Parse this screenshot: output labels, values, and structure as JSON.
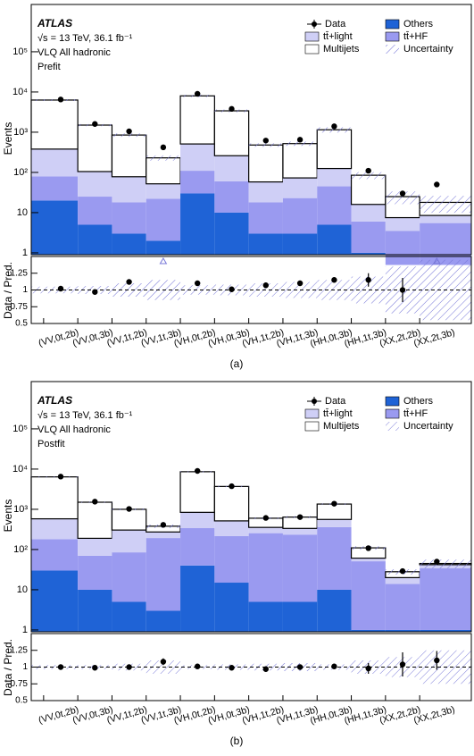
{
  "chart_data": [
    {
      "type": "stacked_hist",
      "caption": "(a)",
      "experiment": "ATLAS",
      "energy": "√s = 13 TeV, 36.1 fb⁻¹",
      "channel": "VLQ All hadronic",
      "stage": "Prefit",
      "ylabel": "Events",
      "ratio_label": "Data / Pred.",
      "categories": [
        "(VV,0t,2b)",
        "(VV,0t,3b)",
        "(VV,1t,2b)",
        "(VV,1t,3b)",
        "(VH,0t,2b)",
        "(VH,0t,3b)",
        "(VH,1t,2b)",
        "(VH,1t,3b)",
        "(HH,0t,3b)",
        "(HH,1t,3b)",
        "(XX,2t,2b)",
        "(XX,2t,3b)"
      ],
      "series": [
        {
          "name": "Others",
          "color": "#1f63d6",
          "values": [
            20,
            5,
            3,
            2,
            30,
            10,
            3,
            3,
            5,
            1,
            0.5,
            0.5
          ]
        },
        {
          "name": "tt̄+HF",
          "color": "#9a9af0",
          "values": [
            60,
            20,
            15,
            20,
            80,
            50,
            15,
            20,
            40,
            5,
            3,
            5
          ]
        },
        {
          "name": "tt̄+light",
          "color": "#cfcff6",
          "values": [
            300,
            80,
            60,
            30,
            400,
            200,
            40,
            50,
            80,
            10,
            4,
            3
          ]
        },
        {
          "name": "Multijets",
          "color": "#ffffff",
          "values": [
            5920,
            1395,
            772,
            178,
            7490,
            3140,
            422,
            447,
            1025,
            69,
            17.5,
            9.5
          ]
        }
      ],
      "data": {
        "name": "Data",
        "values": [
          6500,
          1600,
          1050,
          420,
          9000,
          3800,
          620,
          650,
          1400,
          110,
          30,
          50
        ]
      },
      "uncertainty": {
        "name": "Uncertainty",
        "color": "#7878d8",
        "values": [
          0.05,
          0.06,
          0.1,
          0.15,
          0.07,
          0.08,
          0.1,
          0.12,
          0.15,
          0.2,
          0.35,
          0.45
        ]
      },
      "ratio": {
        "values": [
          1.02,
          0.97,
          1.12,
          1.8,
          1.1,
          1.01,
          1.07,
          1.1,
          1.15,
          1.15,
          1.0,
          2.8
        ],
        "errors": [
          0.01,
          0.02,
          0.03,
          0.05,
          0.01,
          0.02,
          0.04,
          0.04,
          0.03,
          0.1,
          0.18,
          0.15
        ]
      },
      "log": true,
      "ylim": [
        0.9,
        1500000
      ],
      "yticks": [
        1,
        10,
        {
          "value": 100,
          "label": "10²"
        },
        {
          "value": 1000,
          "label": "10³"
        },
        {
          "value": 10000,
          "label": "10⁴"
        },
        {
          "value": 100000,
          "label": "10⁵"
        }
      ],
      "ratio_ylim": [
        0.5,
        1.5
      ],
      "ratio_yticks": [
        0.5,
        0.75,
        1,
        1.25
      ]
    },
    {
      "type": "stacked_hist",
      "caption": "(b)",
      "experiment": "ATLAS",
      "energy": "√s = 13 TeV, 36.1 fb⁻¹",
      "channel": "VLQ All hadronic",
      "stage": "Postfit",
      "ylabel": "Events",
      "ratio_label": "Data / Pred.",
      "categories": [
        "(VV,0t,2b)",
        "(VV,0t,3b)",
        "(VV,1t,2b)",
        "(VV,1t,3b)",
        "(VH,0t,2b)",
        "(VH,0t,3b)",
        "(VH,1t,2b)",
        "(VH,1t,3b)",
        "(HH,0t,3b)",
        "(HH,1t,3b)",
        "(XX,2t,2b)",
        "(XX,2t,3b)"
      ],
      "series": [
        {
          "name": "Others",
          "color": "#1f63d6",
          "values": [
            30,
            10,
            5,
            3,
            40,
            15,
            5,
            5,
            10,
            1,
            1,
            1
          ]
        },
        {
          "name": "tt̄+HF",
          "color": "#9a9af0",
          "values": [
            150,
            60,
            80,
            190,
            300,
            200,
            250,
            230,
            350,
            50,
            13,
            33
          ]
        },
        {
          "name": "tt̄+light",
          "color": "#cfcff6",
          "values": [
            400,
            120,
            220,
            80,
            500,
            300,
            100,
            100,
            200,
            10,
            6,
            8
          ]
        },
        {
          "name": "Multijets",
          "color": "#ffffff",
          "values": [
            5820,
            1310,
            695,
            107,
            7760,
            3185,
            245,
            305,
            790,
            49,
            8,
            3
          ]
        }
      ],
      "data": {
        "name": "Data",
        "values": [
          6500,
          1550,
          1020,
          410,
          9000,
          3750,
          610,
          640,
          1380,
          108,
          29,
          50
        ]
      },
      "uncertainty": {
        "name": "Uncertainty",
        "color": "#7878d8",
        "values": [
          0.03,
          0.03,
          0.05,
          0.1,
          0.03,
          0.04,
          0.05,
          0.06,
          0.04,
          0.1,
          0.15,
          0.25
        ]
      },
      "ratio": {
        "values": [
          1.0,
          0.99,
          1.0,
          1.08,
          1.01,
          0.99,
          0.97,
          1.0,
          1.01,
          0.98,
          1.04,
          1.1
        ],
        "errors": [
          0.01,
          0.02,
          0.03,
          0.05,
          0.01,
          0.02,
          0.04,
          0.04,
          0.03,
          0.08,
          0.18,
          0.14
        ]
      },
      "log": true,
      "ylim": [
        0.9,
        1500000
      ],
      "yticks": [
        1,
        10,
        {
          "value": 100,
          "label": "10²"
        },
        {
          "value": 1000,
          "label": "10³"
        },
        {
          "value": 10000,
          "label": "10⁴"
        },
        {
          "value": 100000,
          "label": "10⁵"
        }
      ],
      "ratio_ylim": [
        0.5,
        1.5
      ],
      "ratio_yticks": [
        0.5,
        0.75,
        1,
        1.25
      ]
    }
  ]
}
